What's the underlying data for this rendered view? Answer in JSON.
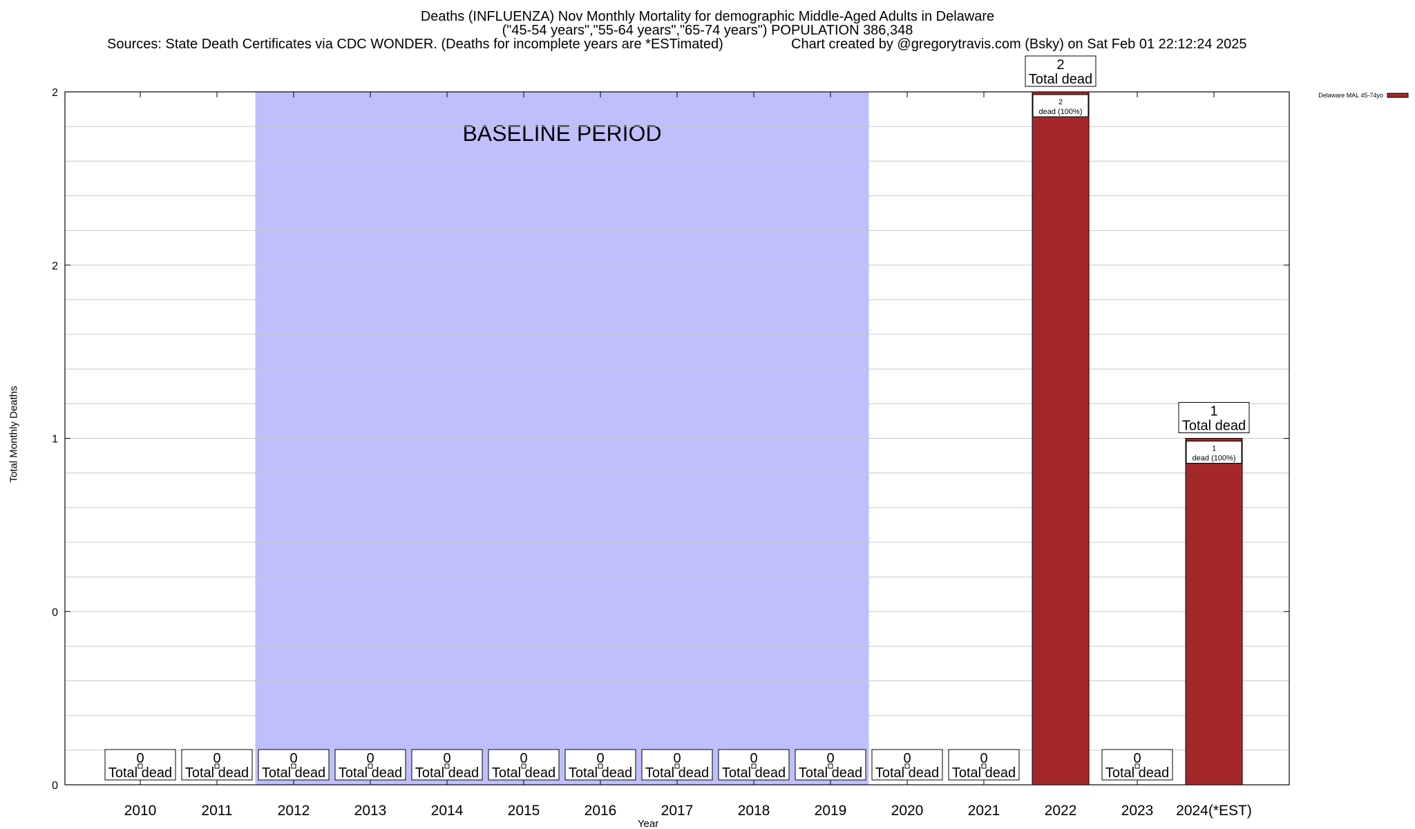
{
  "header": {
    "title_line1": "Deaths (INFLUENZA) Nov Monthly Mortality for demographic Middle-Aged Adults in Delaware",
    "title_line2": "(\"45-54 years\",\"55-64 years\",\"65-74 years\") POPULATION 386,348",
    "sources": "Sources: State Death Certificates via CDC WONDER. (Deaths for incomplete years are *ESTimated)",
    "credit": "Chart created by @gregorytravis.com (Bsky) on Sat Feb 01 22:12:24 2025"
  },
  "chart_data": {
    "type": "bar",
    "title": "Deaths (INFLUENZA) Nov Monthly Mortality for demographic Middle-Aged Adults in Delaware",
    "xlabel": "Year",
    "ylabel": "Total Monthly Deaths",
    "categories": [
      "2010",
      "2011",
      "2012",
      "2013",
      "2014",
      "2015",
      "2016",
      "2017",
      "2018",
      "2019",
      "2020",
      "2021",
      "2022",
      "2023",
      "2024(*EST)"
    ],
    "series": [
      {
        "name": "Delaware MAL 45-74yo",
        "values": [
          0,
          0,
          0,
          0,
          0,
          0,
          0,
          0,
          0,
          0,
          0,
          0,
          2,
          0,
          1
        ]
      }
    ],
    "ylim": [
      0,
      2
    ],
    "y_tick_labels": [
      "0",
      "0",
      "1",
      "2",
      "2"
    ],
    "total_label": "Total dead",
    "segment_label": "dead (100%)",
    "baseline": {
      "label": "BASELINE PERIOD",
      "start": "2012",
      "end": "2019",
      "color": "#bfbffd"
    },
    "bar_color": "#a4282a",
    "grid": true,
    "legend_position": "top-right"
  }
}
